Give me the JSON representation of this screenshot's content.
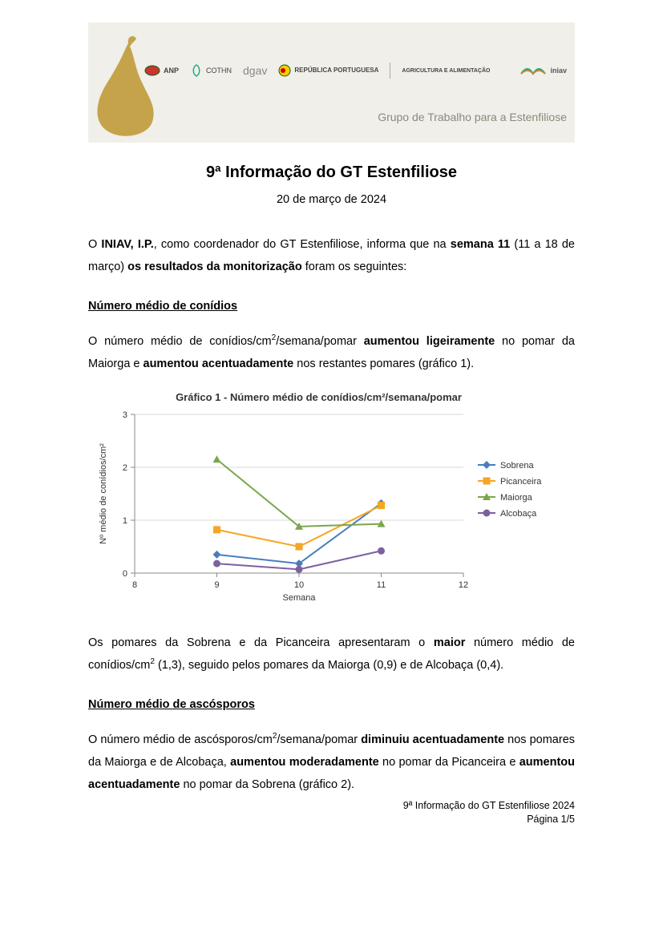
{
  "banner": {
    "subtitle": "Grupo de Trabalho para a Estenfiliose",
    "logos": [
      "ANP",
      "COTHN",
      "dgav",
      "REPÚBLICA PORTUGUESA",
      "AGRICULTURA E ALIMENTAÇÃO",
      "iniav"
    ]
  },
  "title": "9ª Informação do GT Estenfiliose",
  "date": "20 de março de 2024",
  "intro": {
    "p1a": "O ",
    "p1b": "INIAV, I.P.",
    "p1c": ", como coordenador do GT Estenfiliose, informa que na ",
    "p1d": "semana 11",
    "p1e": " (11 a 18 de março) ",
    "p1f": "os resultados da monitorização",
    "p1g": " foram os seguintes:"
  },
  "section1": {
    "heading": "Número médio de conídios",
    "p1a": "O número médio de conídios/cm",
    "p1b": "/semana/pomar ",
    "p1c": "aumentou ligeiramente",
    "p1d": " no pomar da Maiorga e ",
    "p1e": "aumentou acentuadamente",
    "p1f": " nos restantes pomares (gráfico 1)."
  },
  "chart1": {
    "title": "Gráfico 1 - Número médio de conídios/cm²/semana/pomar",
    "type": "line",
    "xlabel": "Semana",
    "ylabel": "Nº médio de conídios/cm²",
    "xlim": [
      8,
      12
    ],
    "ylim": [
      0,
      3
    ],
    "xticks": [
      8,
      9,
      10,
      11,
      12
    ],
    "yticks": [
      0,
      1,
      2,
      3
    ],
    "background_color": "#ffffff",
    "grid_color": "#d9d9d9",
    "axis_color": "#888888",
    "tick_fontsize": 11,
    "label_fontsize": 11,
    "title_fontsize": 13,
    "marker_size": 8,
    "line_width": 2,
    "series": [
      {
        "name": "Sobrena",
        "color": "#4a7ebb",
        "marker": "diamond",
        "x": [
          9,
          10,
          11
        ],
        "y": [
          0.35,
          0.18,
          1.32
        ]
      },
      {
        "name": "Picanceira",
        "color": "#f6a623",
        "marker": "square",
        "x": [
          9,
          10,
          11
        ],
        "y": [
          0.82,
          0.5,
          1.28
        ]
      },
      {
        "name": "Maiorga",
        "color": "#7aa64e",
        "marker": "triangle",
        "x": [
          9,
          10,
          11
        ],
        "y": [
          2.15,
          0.88,
          0.93
        ]
      },
      {
        "name": "Alcobaça",
        "color": "#7d60a0",
        "marker": "circle",
        "x": [
          9,
          10,
          11
        ],
        "y": [
          0.18,
          0.07,
          0.42
        ]
      }
    ]
  },
  "post_chart": {
    "p1a": "Os pomares da Sobrena e da Picanceira apresentaram o ",
    "p1b": "maior",
    "p1c": " número médio de conídios/cm",
    "p1d": " (1,3), seguido pelos pomares da Maiorga (0,9) e de Alcobaça (0,4)."
  },
  "section2": {
    "heading": "Número médio de ascósporos",
    "p1a": "O número médio de ascósporos/cm",
    "p1b": "/semana/pomar ",
    "p1c": "diminuiu acentuadamente",
    "p1d": " nos pomares da Maiorga e de Alcobaça, ",
    "p1e": "aumentou moderadamente",
    "p1f": " no pomar da Picanceira e ",
    "p1g": "aumentou acentuadamente",
    "p1h": " no pomar da Sobrena (gráfico 2)."
  },
  "footer": {
    "line1": "9ª Informação do GT Estenfiliose 2024",
    "line2": "Página 1/5"
  }
}
